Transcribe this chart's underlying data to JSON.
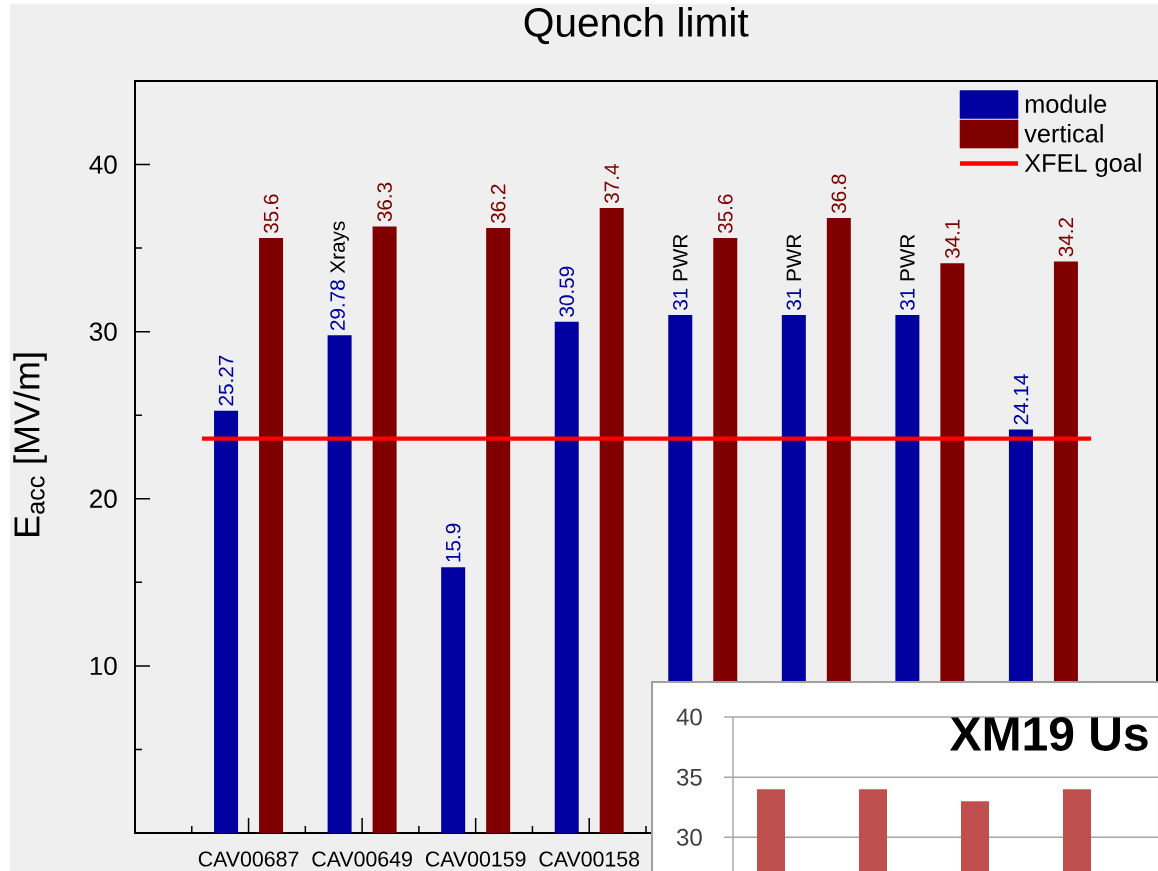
{
  "chart_data": [
    {
      "type": "bar",
      "title": "Quench limit",
      "ylabel": "E$_{acc}$ [MV/m]",
      "categories": [
        "CAV00687",
        "CAV00649",
        "CAV00159",
        "CAV00158",
        null,
        null,
        null,
        null
      ],
      "series": [
        {
          "name": "module",
          "color": "#0000a0",
          "values": [
            25.27,
            29.78,
            15.9,
            30.59,
            31,
            31,
            31,
            24.14
          ],
          "value_labels": [
            "25.27",
            "29.78 Xrays",
            "15.9",
            "30.59",
            "31 PWR",
            "31 PWR",
            "31 PWR",
            "24.14"
          ]
        },
        {
          "name": "vertical",
          "color": "#800000",
          "values": [
            35.6,
            36.3,
            36.2,
            37.4,
            35.6,
            36.8,
            34.1,
            34.2
          ],
          "value_labels": [
            "35.6",
            "36.3",
            "36.2",
            "37.4",
            "35.6",
            "36.8",
            "34.1",
            "34.2"
          ]
        }
      ],
      "ylim": [
        0,
        45
      ],
      "yticks": [
        {
          "value": 5,
          "label": null
        },
        10,
        {
          "value": 15,
          "label": null
        },
        20,
        {
          "value": 25,
          "label": null
        },
        30,
        {
          "value": 35,
          "label": null
        },
        40
      ],
      "ref_lines": [
        {
          "axis": "y",
          "value": 23.6,
          "label": "XFEL goal",
          "color": "#ff0000"
        }
      ],
      "legend": "top right"
    },
    {
      "type": "bar",
      "title": "XM19 Us",
      "categories": [
        null,
        null,
        null,
        null
      ],
      "values": [
        34,
        34,
        33,
        34
      ],
      "color": "#c0504d",
      "ylim": [
        27.2,
        40
      ],
      "yticks": [
        30,
        35,
        40
      ],
      "grid": "y",
      "tick_labels": "y"
    }
  ]
}
